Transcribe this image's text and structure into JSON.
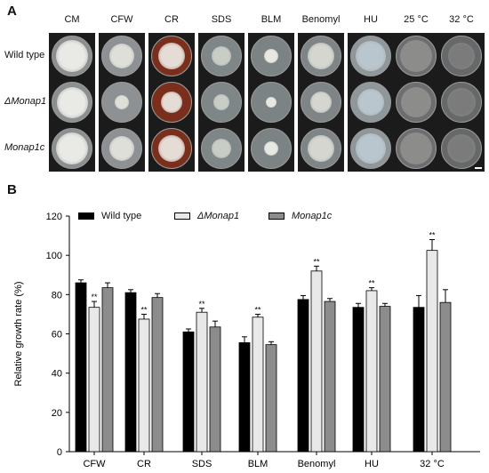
{
  "panel_a": {
    "letter": "A",
    "columns": [
      "CM",
      "CFW",
      "CR",
      "SDS",
      "BLM",
      "Benomyl",
      "HU",
      "25 °C",
      "32 °C"
    ],
    "rows": [
      {
        "label": "Wild type",
        "italic": false
      },
      {
        "label": "ΔMonap1",
        "italic": true
      },
      {
        "label": "Monap1c",
        "italic": true
      }
    ]
  },
  "panel_b": {
    "letter": "B"
  },
  "chart_data": {
    "type": "bar",
    "categories": [
      "CFW",
      "CR",
      "SDS",
      "BLM",
      "Benomyl",
      "HU",
      "32 °C"
    ],
    "ylabel": "Relative growth rate (%)",
    "xlabel": "",
    "ylim": [
      0,
      120
    ],
    "yticks": [
      0,
      20,
      40,
      60,
      80,
      100,
      120
    ],
    "legend_position": "top",
    "series": [
      {
        "name": "Wild type",
        "color": "#000000",
        "values": [
          86,
          81,
          61,
          55.5,
          77.5,
          73.5,
          73.5
        ],
        "errors": [
          1.5,
          1.5,
          1.5,
          3,
          2,
          2,
          6
        ]
      },
      {
        "name": "ΔMonap1",
        "color": "#e8e8e8",
        "values": [
          73.5,
          67.5,
          71,
          68.5,
          92,
          82,
          102.5
        ],
        "errors": [
          3,
          2.5,
          2,
          1.5,
          2.5,
          1.5,
          5.5
        ]
      },
      {
        "name": "Monap1c",
        "color": "#8c8c8c",
        "values": [
          83.5,
          78.5,
          63.5,
          54.5,
          76.5,
          74,
          76
        ],
        "errors": [
          2.5,
          2,
          3,
          1.5,
          1.5,
          1.5,
          6.5
        ]
      }
    ],
    "annotations": [
      {
        "series": "ΔMonap1",
        "category": "CFW",
        "text": "**"
      },
      {
        "series": "ΔMonap1",
        "category": "CR",
        "text": "**"
      },
      {
        "series": "ΔMonap1",
        "category": "SDS",
        "text": "**"
      },
      {
        "series": "ΔMonap1",
        "category": "BLM",
        "text": "**"
      },
      {
        "series": "ΔMonap1",
        "category": "Benomyl",
        "text": "**"
      },
      {
        "series": "ΔMonap1",
        "category": "HU",
        "text": "**"
      },
      {
        "series": "ΔMonap1",
        "category": "32 °C",
        "text": "**"
      }
    ]
  }
}
